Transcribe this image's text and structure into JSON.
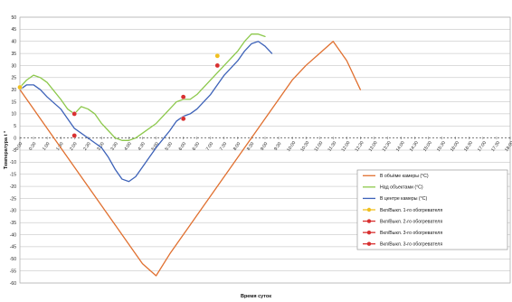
{
  "chart_data": {
    "type": "line",
    "title": "",
    "xlabel": "Время суток",
    "ylabel": "Температура t °",
    "ylim": [
      -60,
      50
    ],
    "ytick_step": 5,
    "grid": true,
    "legend_position": "bottom-right",
    "x_categories": [
      "0:00",
      "0:30",
      "1:00",
      "1:30",
      "2:00",
      "2:30",
      "3:00",
      "3:30",
      "4:00",
      "4:30",
      "5:00",
      "5:30",
      "6:00",
      "6:30",
      "7:00",
      "7:30",
      "8:00",
      "8:30",
      "9:00",
      "9:30",
      "10:00",
      "10:30",
      "11:00",
      "11:30",
      "12:00",
      "12:30",
      "13:00",
      "13:30",
      "14:00",
      "14:30",
      "15:00",
      "15:30",
      "16:00",
      "16:30",
      "17:00",
      "17:30",
      "18:00"
    ],
    "series": [
      {
        "name": "В объёме камеры (°С)",
        "color": "#e07030",
        "kind": "line",
        "points": [
          [
            0,
            20
          ],
          [
            1,
            12
          ],
          [
            2,
            4
          ],
          [
            3,
            -4
          ],
          [
            4,
            -12
          ],
          [
            5,
            -20
          ],
          [
            6,
            -28
          ],
          [
            7,
            -36
          ],
          [
            8,
            -44
          ],
          [
            9,
            -52
          ],
          [
            10,
            -57
          ],
          [
            11,
            -48
          ],
          [
            12,
            -40
          ],
          [
            13,
            -32
          ],
          [
            14,
            -24
          ],
          [
            15,
            -16
          ],
          [
            16,
            -8
          ],
          [
            17,
            0
          ],
          [
            18,
            8
          ],
          [
            19,
            16
          ],
          [
            20,
            24
          ],
          [
            21,
            30
          ],
          [
            22,
            35
          ],
          [
            23,
            40
          ],
          [
            24,
            32
          ],
          [
            25,
            20
          ]
        ]
      },
      {
        "name": "Над объектами (°С)",
        "color": "#8cc84b",
        "kind": "line",
        "points": [
          [
            0,
            21
          ],
          [
            0.5,
            24
          ],
          [
            1,
            26
          ],
          [
            1.5,
            25
          ],
          [
            2,
            23
          ],
          [
            3,
            16
          ],
          [
            3.5,
            12
          ],
          [
            4,
            10
          ],
          [
            4.5,
            13
          ],
          [
            5,
            12
          ],
          [
            5.5,
            10
          ],
          [
            6,
            6
          ],
          [
            6.5,
            3
          ],
          [
            7,
            0
          ],
          [
            7.5,
            -1
          ],
          [
            8,
            -1
          ],
          [
            8.5,
            0
          ],
          [
            9,
            2
          ],
          [
            10,
            6
          ],
          [
            11,
            12
          ],
          [
            11.5,
            15
          ],
          [
            12,
            16
          ],
          [
            12.5,
            16
          ],
          [
            13,
            18
          ],
          [
            14,
            24
          ],
          [
            15,
            30
          ],
          [
            16,
            36
          ],
          [
            16.5,
            40
          ],
          [
            17,
            43
          ],
          [
            17.5,
            43
          ],
          [
            18,
            42
          ]
        ]
      },
      {
        "name": "В центре камеры (°С)",
        "color": "#3d62b8",
        "kind": "line",
        "points": [
          [
            0,
            20
          ],
          [
            0.5,
            22
          ],
          [
            1,
            22
          ],
          [
            1.5,
            20
          ],
          [
            2,
            17
          ],
          [
            3,
            12
          ],
          [
            4,
            4
          ],
          [
            5,
            0
          ],
          [
            5.5,
            -2
          ],
          [
            6,
            -4
          ],
          [
            6.5,
            -8
          ],
          [
            7,
            -13
          ],
          [
            7.5,
            -17
          ],
          [
            8,
            -18
          ],
          [
            8.5,
            -16
          ],
          [
            9,
            -12
          ],
          [
            9.5,
            -8
          ],
          [
            10,
            -4
          ],
          [
            11,
            3
          ],
          [
            11.5,
            7
          ],
          [
            12,
            9
          ],
          [
            12.5,
            10
          ],
          [
            13,
            12
          ],
          [
            14,
            18
          ],
          [
            15,
            26
          ],
          [
            16,
            32
          ],
          [
            16.5,
            36
          ],
          [
            17,
            39
          ],
          [
            17.5,
            40
          ],
          [
            18,
            38
          ],
          [
            18.5,
            35
          ]
        ]
      },
      {
        "name": "Вкл/Выкл. 1-го обогревателя",
        "color": "#f0c020",
        "kind": "markers",
        "points": [
          [
            0,
            21
          ],
          [
            14.5,
            34
          ]
        ]
      },
      {
        "name": "Вкл/Выкл. 2-го обогревателя",
        "color": "#d83030",
        "kind": "markers",
        "points": [
          [
            4,
            10
          ],
          [
            12,
            17
          ]
        ]
      },
      {
        "name": "Вкл/Выкл. 3-го обогревателя",
        "color": "#d83030",
        "kind": "markers",
        "points": [
          [
            4,
            1
          ],
          [
            12,
            8
          ],
          [
            14.5,
            30
          ]
        ]
      },
      {
        "name": "Вкл/Выкл. 3-го обогревателя",
        "color": "#d83030",
        "kind": "markers",
        "points": []
      }
    ]
  }
}
